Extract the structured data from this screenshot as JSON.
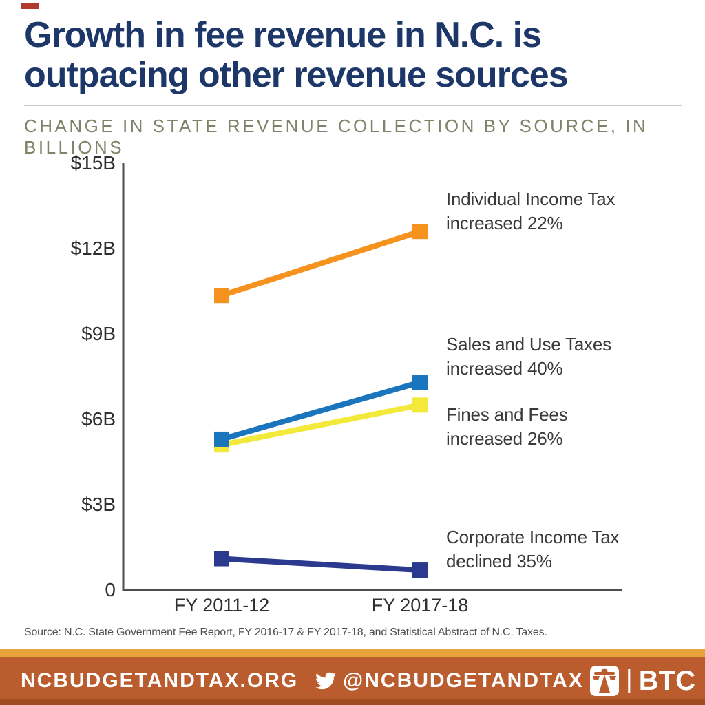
{
  "page": {
    "title_line1": "Growth in fee revenue in N.C. is",
    "title_line2": "outpacing other revenue sources",
    "subtitle": "CHANGE IN STATE REVENUE COLLECTION BY SOURCE, IN BILLIONS",
    "source": "Source: N.C. State Government Fee Report, FY 2016-17 & FY 2017-18, and Statistical Abstract of N.C. Taxes.",
    "colors": {
      "title": "#1d3768",
      "subtitle": "#7f8368",
      "axis": "#4d4d4f",
      "footer_bar": "#bb5c2e",
      "footer_strip": "#e9a33c"
    }
  },
  "footer": {
    "website": "NCBUDGETANDTAX.ORG",
    "twitter_handle": "@NCBUDGETANDTAX",
    "logo_separator": "|",
    "logo_text": "BTC"
  },
  "chart_data": {
    "type": "line",
    "title": "Change in state revenue collection by source, in billions",
    "x_categories": [
      "FY 2011-12",
      "FY 2017-18"
    ],
    "ylim": [
      0,
      15
    ],
    "yticks": [
      {
        "label": "$15B",
        "value": 15
      },
      {
        "label": "$12B",
        "value": 12
      },
      {
        "label": "$9B",
        "value": 9
      },
      {
        "label": "$6B",
        "value": 6
      },
      {
        "label": "$3B",
        "value": 3
      },
      {
        "label": "0",
        "value": 0
      }
    ],
    "grid": false,
    "legend_position": "right-annotations",
    "marker": "square",
    "series": [
      {
        "name": "Individual Income Tax",
        "change": "increased 22%",
        "color": "#f6921e",
        "values": [
          10.35,
          12.6
        ]
      },
      {
        "name": "Sales and Use Taxes",
        "change": "increased 40%",
        "color": "#1b75bc",
        "values": [
          5.3,
          7.3
        ]
      },
      {
        "name": "Fines and Fees",
        "change": "increased 26%",
        "color": "#f2e93b",
        "values": [
          5.1,
          6.5
        ]
      },
      {
        "name": "Corporate Income Tax",
        "change": "declined 35%",
        "color": "#2b3a8f",
        "values": [
          1.1,
          0.7
        ]
      }
    ]
  }
}
